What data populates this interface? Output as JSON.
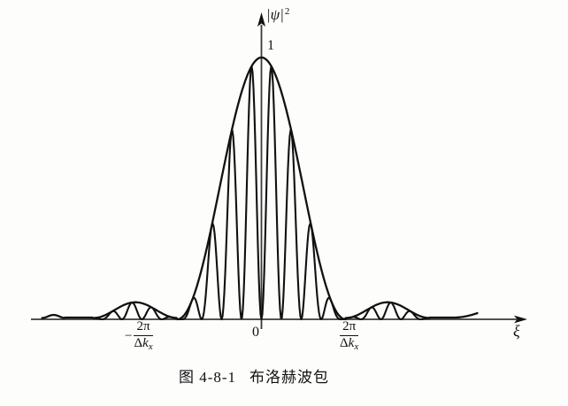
{
  "figure": {
    "caption": {
      "prefix": "图 4-8-1",
      "title": "布洛赫波包"
    },
    "y_axis": {
      "psi": "|ψ|",
      "sup": "2",
      "peak_value": "1"
    },
    "x_axis": {
      "label": "ξ",
      "origin": "0",
      "left_tick": {
        "sign": "−",
        "numerator": "2π",
        "delta": "Δ",
        "k": "k",
        "sub": "x"
      },
      "right_tick": {
        "numerator": "2π",
        "delta": "Δ",
        "k": "k",
        "sub": "x"
      }
    }
  },
  "chart_data": {
    "type": "line",
    "title": "图 4-8-1 布洛赫波包 (Bloch wave packet)",
    "xlabel": "ξ",
    "ylabel": "|ψ|²",
    "grid": false,
    "legend": "none",
    "xlim": [
      -2.61,
      2.57
    ],
    "ylim": [
      0,
      1.15
    ],
    "x_unit": "2π/Δk_x",
    "x_ticks": [
      {
        "x": -1,
        "label": "−2π/Δk_x"
      },
      {
        "x": 0,
        "label": "0"
      },
      {
        "x": 1,
        "label": "2π/Δk_x"
      }
    ],
    "annotations": [
      {
        "x": 0,
        "y": 1,
        "text": "1"
      }
    ],
    "series": [
      {
        "name": "envelope",
        "description": "sinc²-type wave-packet envelope: |ψ|² peak = 1 at ξ = 0, first zeros at ξ = ±2π/Δk_x, small side lobes (≈0.06 of peak) centered near ξ = ±1.5·(2π/Δk_x), decaying tail beyond ±2·(2π/Δk_x)"
      },
      {
        "name": "rapid-oscillation",
        "description": "fast Bloch oscillation filling the envelope: envelope × sin², zero at ξ = 0, zeros spaced ≈0.237·(2π/Δk_x), spikes touching the envelope"
      }
    ],
    "model": {
      "peak": 1,
      "first_zero": 1,
      "side_lobe_height": 0.06,
      "osc_zero_spacing": 0.237,
      "osc_zero_at_center": true,
      "envelope_x_range": [
        -2.61,
        2.57
      ],
      "oscillation_x_range": [
        -2,
        2
      ]
    }
  },
  "colors": {
    "ink": "#111111",
    "axis": "#3a3a3a",
    "background": "#fdfdfc"
  }
}
